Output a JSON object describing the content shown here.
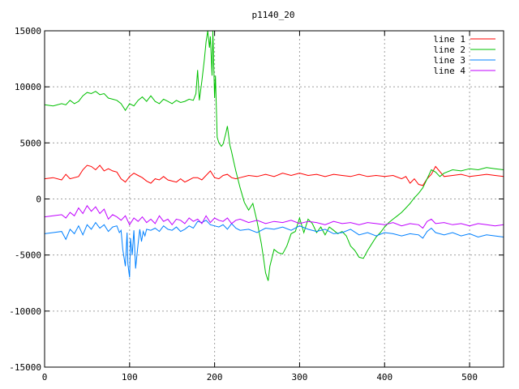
{
  "chart_data": {
    "type": "line",
    "title": "p1140_20",
    "xlabel": "",
    "ylabel": "",
    "xlim": [
      0,
      540
    ],
    "ylim": [
      -15000,
      15000
    ],
    "x_ticks": [
      0,
      100,
      200,
      300,
      400,
      500
    ],
    "y_ticks": [
      -15000,
      -10000,
      -5000,
      0,
      5000,
      10000,
      15000
    ],
    "grid": true,
    "legend_position": "top-right",
    "series": [
      {
        "name": "line 1",
        "color": "#ff0000",
        "x": [
          0,
          10,
          20,
          25,
          30,
          40,
          45,
          50,
          55,
          60,
          65,
          70,
          75,
          80,
          85,
          90,
          95,
          100,
          105,
          110,
          115,
          120,
          125,
          130,
          135,
          140,
          145,
          150,
          155,
          160,
          165,
          170,
          175,
          180,
          185,
          190,
          195,
          200,
          205,
          210,
          215,
          220,
          225,
          230,
          240,
          250,
          260,
          270,
          280,
          290,
          300,
          310,
          320,
          330,
          340,
          350,
          360,
          370,
          380,
          390,
          400,
          410,
          420,
          425,
          430,
          435,
          440,
          445,
          450,
          455,
          460,
          470,
          480,
          490,
          500,
          510,
          520,
          530,
          540
        ],
        "y": [
          1800,
          1900,
          1700,
          2200,
          1800,
          2000,
          2600,
          3000,
          2900,
          2600,
          3000,
          2500,
          2700,
          2500,
          2400,
          1800,
          1500,
          2000,
          2300,
          2100,
          1900,
          1600,
          1400,
          1800,
          1700,
          2000,
          1700,
          1600,
          1500,
          1800,
          1500,
          1700,
          1900,
          1900,
          1700,
          2100,
          2500,
          1900,
          1800,
          2100,
          2200,
          1900,
          1800,
          1900,
          2100,
          2000,
          2200,
          2000,
          2300,
          2100,
          2300,
          2100,
          2200,
          2000,
          2200,
          2100,
          2000,
          2200,
          2000,
          2100,
          2000,
          2100,
          1800,
          2000,
          1400,
          1800,
          1300,
          1200,
          1800,
          2200,
          2900,
          2000,
          2100,
          2200,
          2000,
          2100,
          2200,
          2100,
          2000
        ]
      },
      {
        "name": "line 2",
        "color": "#00c000",
        "x": [
          0,
          10,
          20,
          25,
          30,
          35,
          40,
          45,
          50,
          55,
          60,
          65,
          70,
          75,
          80,
          85,
          90,
          95,
          100,
          105,
          110,
          115,
          120,
          125,
          130,
          135,
          140,
          145,
          150,
          155,
          160,
          165,
          170,
          175,
          178,
          180,
          182,
          185,
          188,
          190,
          192,
          194,
          195,
          197,
          198,
          200,
          201,
          203,
          205,
          208,
          210,
          213,
          215,
          218,
          220,
          222,
          225,
          230,
          235,
          240,
          245,
          250,
          255,
          258,
          260,
          263,
          265,
          270,
          275,
          280,
          285,
          290,
          295,
          300,
          305,
          310,
          315,
          320,
          325,
          330,
          335,
          340,
          345,
          350,
          355,
          360,
          365,
          370,
          375,
          380,
          385,
          390,
          395,
          400,
          405,
          410,
          415,
          420,
          425,
          430,
          435,
          440,
          445,
          450,
          455,
          460,
          465,
          470,
          480,
          490,
          500,
          510,
          520,
          530,
          540
        ],
        "y": [
          8400,
          8300,
          8500,
          8400,
          8800,
          8500,
          8700,
          9200,
          9500,
          9400,
          9600,
          9300,
          9400,
          9000,
          8900,
          8800,
          8500,
          7900,
          8500,
          8300,
          8800,
          9100,
          8700,
          9200,
          8700,
          8500,
          8900,
          8700,
          8500,
          8800,
          8600,
          8700,
          8900,
          8800,
          9400,
          11500,
          8800,
          10500,
          12500,
          14000,
          15000,
          13500,
          14500,
          11000,
          15000,
          9000,
          11000,
          5500,
          5000,
          4700,
          4900,
          5800,
          6500,
          4800,
          4200,
          3500,
          2500,
          1000,
          -300,
          -1000,
          -400,
          -2000,
          -4000,
          -5500,
          -6600,
          -7300,
          -6000,
          -4500,
          -4800,
          -4900,
          -4200,
          -3100,
          -2900,
          -1700,
          -3000,
          -1800,
          -2200,
          -3000,
          -2500,
          -3200,
          -2500,
          -2800,
          -3100,
          -2900,
          -3300,
          -4200,
          -4600,
          -5200,
          -5300,
          -4600,
          -4000,
          -3400,
          -3000,
          -2500,
          -2100,
          -1800,
          -1500,
          -1200,
          -800,
          -400,
          100,
          500,
          1000,
          1800,
          2600,
          2400,
          2000,
          2300,
          2600,
          2500,
          2700,
          2600,
          2800,
          2700,
          2600
        ]
      },
      {
        "name": "line 3",
        "color": "#0080ff",
        "x": [
          0,
          10,
          20,
          25,
          30,
          35,
          40,
          45,
          50,
          55,
          60,
          65,
          70,
          75,
          80,
          85,
          88,
          90,
          92,
          95,
          97,
          98,
          100,
          101,
          103,
          105,
          107,
          110,
          112,
          114,
          116,
          118,
          120,
          125,
          130,
          135,
          140,
          145,
          150,
          155,
          160,
          165,
          170,
          175,
          180,
          185,
          190,
          195,
          200,
          205,
          210,
          215,
          220,
          225,
          230,
          240,
          250,
          260,
          270,
          280,
          290,
          300,
          310,
          320,
          330,
          340,
          350,
          360,
          370,
          380,
          390,
          400,
          410,
          420,
          430,
          440,
          445,
          450,
          455,
          460,
          470,
          480,
          490,
          500,
          510,
          520,
          530,
          540
        ],
        "y": [
          -3100,
          -3000,
          -2900,
          -3600,
          -2700,
          -3100,
          -2400,
          -3200,
          -2300,
          -2700,
          -2100,
          -2600,
          -2300,
          -2900,
          -2500,
          -2400,
          -3000,
          -2800,
          -4500,
          -6000,
          -3000,
          -5800,
          -7000,
          -3500,
          -5000,
          -2800,
          -6200,
          -4000,
          -2700,
          -3800,
          -2900,
          -3300,
          -2700,
          -2800,
          -2600,
          -2900,
          -2400,
          -2700,
          -2800,
          -2500,
          -2900,
          -2700,
          -2400,
          -2600,
          -2000,
          -2100,
          -1900,
          -2300,
          -2400,
          -2500,
          -2300,
          -2700,
          -2200,
          -2600,
          -2800,
          -2700,
          -3000,
          -2600,
          -2700,
          -2500,
          -2800,
          -2400,
          -2700,
          -2900,
          -2700,
          -3100,
          -3000,
          -2700,
          -3200,
          -3000,
          -3300,
          -3000,
          -3100,
          -3300,
          -3100,
          -3200,
          -3500,
          -2900,
          -2600,
          -3000,
          -3200,
          -3000,
          -3300,
          -3100,
          -3400,
          -3200,
          -3300,
          -3400
        ]
      },
      {
        "name": "line 4",
        "color": "#c000ff",
        "x": [
          0,
          10,
          20,
          25,
          30,
          35,
          40,
          45,
          50,
          55,
          60,
          65,
          70,
          75,
          80,
          85,
          90,
          95,
          100,
          105,
          110,
          115,
          120,
          125,
          130,
          135,
          140,
          145,
          150,
          155,
          160,
          165,
          170,
          175,
          180,
          185,
          190,
          195,
          200,
          205,
          210,
          215,
          220,
          225,
          230,
          240,
          250,
          260,
          270,
          280,
          290,
          300,
          310,
          320,
          330,
          340,
          350,
          360,
          370,
          380,
          390,
          400,
          410,
          420,
          430,
          440,
          445,
          450,
          455,
          460,
          470,
          480,
          490,
          500,
          510,
          520,
          530,
          540
        ],
        "y": [
          -1600,
          -1500,
          -1400,
          -1700,
          -1200,
          -1500,
          -800,
          -1300,
          -600,
          -1100,
          -700,
          -1300,
          -900,
          -1800,
          -1400,
          -1600,
          -1900,
          -1500,
          -2300,
          -1700,
          -2000,
          -1600,
          -2100,
          -1800,
          -2200,
          -1500,
          -2000,
          -1800,
          -2300,
          -1800,
          -1900,
          -2200,
          -1700,
          -2000,
          -1800,
          -2200,
          -1500,
          -2100,
          -1700,
          -1900,
          -2000,
          -1700,
          -2200,
          -1900,
          -1800,
          -2100,
          -1900,
          -2200,
          -2000,
          -2100,
          -1900,
          -2200,
          -2000,
          -2100,
          -2300,
          -2000,
          -2200,
          -2100,
          -2300,
          -2100,
          -2200,
          -2300,
          -2100,
          -2400,
          -2200,
          -2300,
          -2600,
          -2000,
          -1800,
          -2200,
          -2100,
          -2300,
          -2200,
          -2400,
          -2200,
          -2300,
          -2400,
          -2300
        ]
      }
    ]
  }
}
